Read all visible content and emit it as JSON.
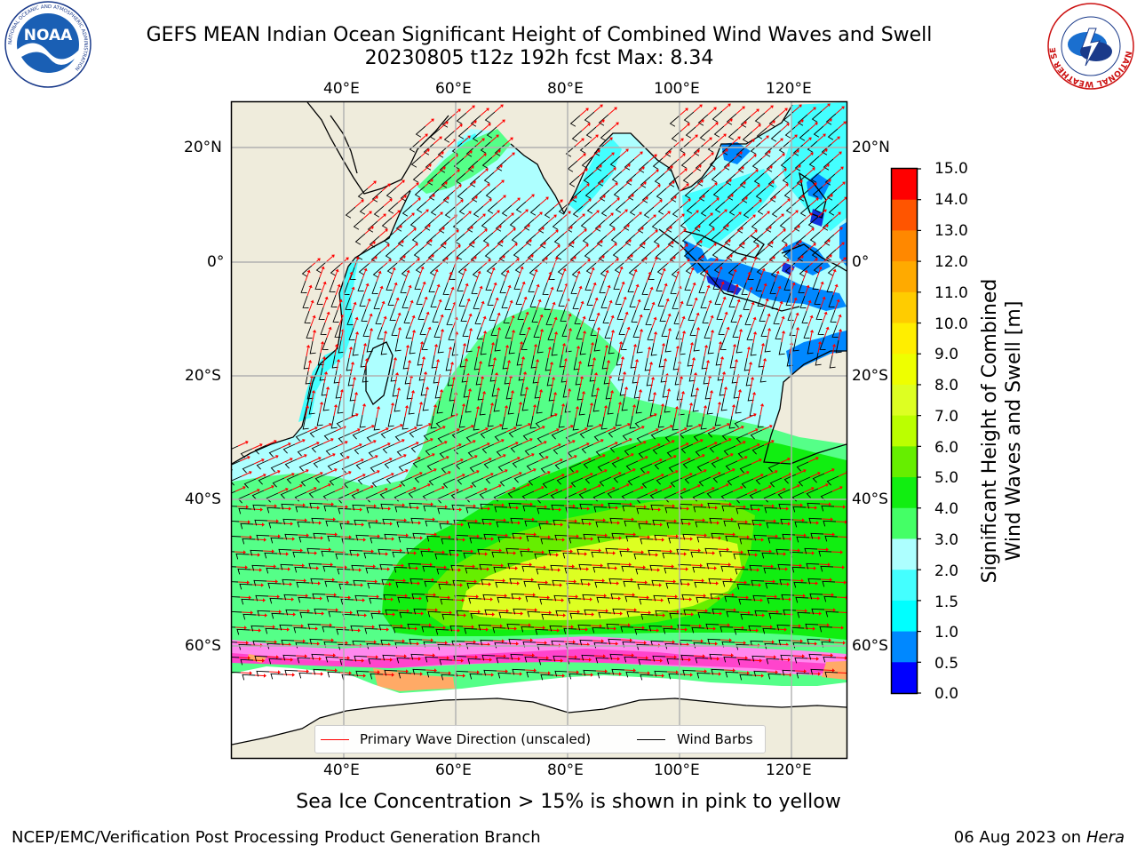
{
  "title": {
    "line1": "GEFS MEAN Indian Ocean Significant Height of Combined Wind Waves and Swell",
    "line2": "20230805 t12z 192h fcst   Max: 8.34"
  },
  "map": {
    "lon_labels": [
      "40°E",
      "60°E",
      "80°E",
      "100°E",
      "120°E"
    ],
    "lat_labels": [
      "20°N",
      "0°",
      "20°S",
      "40°S",
      "60°S"
    ],
    "land_color": "#efecdc",
    "ocean_colors": {
      "cyan_light": "#adffff",
      "cyan": "#44ffff",
      "green_light": "#55ff88",
      "green": "#11ee11",
      "yellow_green": "#ddff22",
      "blue": "#0088ff",
      "dark_blue": "#1133dd"
    },
    "ice_colors": [
      "#ff44cc",
      "#ff88ee",
      "#ffaa66"
    ],
    "wave_arrow_color": "#ff0000",
    "wind_barb_color": "#000000"
  },
  "legend": {
    "wave": "Primary Wave Direction (unscaled)",
    "wind": "Wind Barbs",
    "wave_color": "#ff0000",
    "wind_color": "#000000"
  },
  "colorbar": {
    "tick_labels": [
      "15.0",
      "14.0",
      "13.0",
      "12.0",
      "11.0",
      "10.0",
      "9.0",
      "8.0",
      "7.0",
      "6.0",
      "5.0",
      "4.0",
      "3.0",
      "2.0",
      "1.5",
      "1.0",
      "0.5",
      "0.0"
    ],
    "colors": [
      "#ff0000",
      "#ff2200",
      "#ff5500",
      "#ff8800",
      "#ffaa00",
      "#ffcc00",
      "#ffee00",
      "#eeff00",
      "#ddff22",
      "#bbff00",
      "#66ee00",
      "#11ee11",
      "#44ff66",
      "#55ff88",
      "#adffff",
      "#44ffff",
      "#00ffff",
      "#0088ff",
      "#0044ee",
      "#0000ff"
    ],
    "title_line1": "Significant Height of Combined",
    "title_line2": "Wind Waves and Swell [m]"
  },
  "caption": "Sea Ice Concentration > 15% is shown in pink to yellow",
  "footer": {
    "credit": "NCEP/EMC/Verification Post Processing Product Generation Branch",
    "date": "06 Aug 2023 on",
    "host": "Hera"
  },
  "logos": {
    "noaa_text": "NOAA",
    "noaa_ring": "NATIONAL OCEANIC AND ATMOSPHERIC ADMINISTRATION",
    "nws_ring": "NATIONAL WEATHER SERVICE"
  }
}
